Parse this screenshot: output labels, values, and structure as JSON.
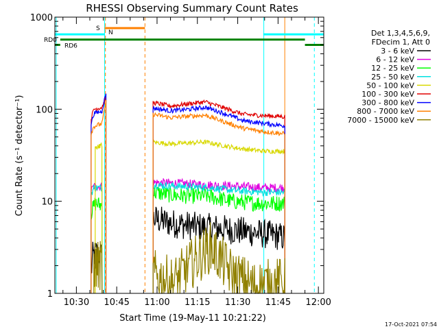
{
  "chart_data": {
    "type": "line",
    "title": "RHESSI Observing Summary Count Rates",
    "xlabel": "Start Time (19-May-11 10:21:22)",
    "ylabel": "Count Rate (s⁻¹ detector⁻¹)",
    "yscale": "log",
    "xlim_min": [
      22,
      122
    ],
    "ylim": [
      1,
      1000
    ],
    "x_ticks": [
      {
        "min": 30,
        "label": "10:30"
      },
      {
        "min": 45,
        "label": "10:45"
      },
      {
        "min": 60,
        "label": "11:00"
      },
      {
        "min": 75,
        "label": "11:15"
      },
      {
        "min": 90,
        "label": "11:30"
      },
      {
        "min": 105,
        "label": "11:45"
      },
      {
        "min": 120,
        "label": "12:00"
      }
    ],
    "y_ticks": [
      {
        "value": 1,
        "label": "1"
      },
      {
        "value": 10,
        "label": "10"
      },
      {
        "value": 100,
        "label": "100"
      },
      {
        "value": 1000,
        "label": "1000"
      }
    ],
    "legend": {
      "position": "right",
      "header": [
        "Det 1,3,4,5,6,9,",
        "FDecim 1, Att 0"
      ]
    },
    "series": [
      {
        "name": "3 - 6 keV",
        "color": "#000000",
        "segments": [
          [
            [
              35.5,
              1.6
            ],
            [
              36.0,
              2.5
            ],
            [
              37.5,
              2.8
            ],
            [
              39.5,
              2.5
            ]
          ],
          [
            [
              58.5,
              6.5
            ],
            [
              65,
              5.8
            ],
            [
              75,
              5.3
            ],
            [
              85,
              5.0
            ],
            [
              95,
              4.6
            ],
            [
              105,
              4.2
            ],
            [
              107.5,
              4.0
            ]
          ]
        ]
      },
      {
        "name": "6 - 12 keV",
        "color": "#e000e0",
        "segments": [
          [
            [
              35.5,
              13
            ],
            [
              36.5,
              14.5
            ],
            [
              39.5,
              14.5
            ]
          ],
          [
            [
              58.5,
              16
            ],
            [
              70,
              15.5
            ],
            [
              80,
              15
            ],
            [
              90,
              14.5
            ],
            [
              100,
              14
            ],
            [
              107.5,
              14
            ]
          ]
        ]
      },
      {
        "name": "12 - 25 keV",
        "color": "#00ff00",
        "segments": [
          [
            [
              35.5,
              7.5
            ],
            [
              37,
              9.5
            ],
            [
              39.5,
              9
            ]
          ],
          [
            [
              58.5,
              12.5
            ],
            [
              68,
              11.5
            ],
            [
              78,
              11.5
            ],
            [
              88,
              10
            ],
            [
              98,
              9.5
            ],
            [
              107.5,
              9.5
            ]
          ]
        ]
      },
      {
        "name": "25 - 50 keV",
        "color": "#00e0e0",
        "segments": [
          [
            [
              35.5,
              12
            ],
            [
              36.5,
              14
            ],
            [
              39.5,
              14
            ]
          ],
          [
            [
              58.5,
              15
            ],
            [
              70,
              14.5
            ],
            [
              80,
              14
            ],
            [
              90,
              13
            ],
            [
              100,
              12.5
            ],
            [
              107.5,
              12.5
            ]
          ]
        ]
      },
      {
        "name": "50 - 100 keV",
        "color": "#d8d800",
        "segments": [
          [
            [
              37,
              38
            ],
            [
              39.5,
              41
            ]
          ],
          [
            [
              58.5,
              44
            ],
            [
              65,
              42
            ],
            [
              72,
              43
            ],
            [
              78,
              44
            ],
            [
              85,
              40
            ],
            [
              92,
              37
            ],
            [
              100,
              35
            ],
            [
              107.5,
              35
            ]
          ]
        ]
      },
      {
        "name": "100 - 300 keV",
        "color": "#e00000",
        "segments": [
          [
            [
              35.5,
              80
            ],
            [
              36.5,
              100
            ],
            [
              39.5,
              105
            ],
            [
              41,
              130
            ]
          ],
          [
            [
              58.5,
              118
            ],
            [
              65,
              108
            ],
            [
              72,
              115
            ],
            [
              78,
              120
            ],
            [
              85,
              103
            ],
            [
              92,
              88
            ],
            [
              100,
              85
            ],
            [
              107.5,
              83
            ]
          ]
        ]
      },
      {
        "name": "300 - 800 keV",
        "color": "#0000ff",
        "segments": [
          [
            [
              35.5,
              70
            ],
            [
              36.5,
              90
            ],
            [
              39.5,
              95
            ],
            [
              41,
              150
            ]
          ],
          [
            [
              58.5,
              103
            ],
            [
              65,
              96
            ],
            [
              72,
              100
            ],
            [
              78,
              105
            ],
            [
              85,
              90
            ],
            [
              92,
              75
            ],
            [
              100,
              70
            ],
            [
              107.5,
              66
            ]
          ]
        ]
      },
      {
        "name": "800 - 7000 keV",
        "color": "#ff8000",
        "segments": [
          [
            [
              35.5,
              55
            ],
            [
              36.5,
              65
            ],
            [
              39.5,
              70
            ],
            [
              41,
              120
            ]
          ],
          [
            [
              58.5,
              88
            ],
            [
              65,
              81
            ],
            [
              72,
              84
            ],
            [
              78,
              86
            ],
            [
              85,
              73
            ],
            [
              92,
              62
            ],
            [
              100,
              57
            ],
            [
              107.5,
              54
            ]
          ]
        ]
      },
      {
        "name": "7000 - 15000 keV",
        "color": "#908000",
        "segments": [
          [
            [
              36.5,
              2.0
            ],
            [
              39.5,
              2.0
            ]
          ],
          [
            [
              58.5,
              1.6
            ],
            [
              66,
              1.3
            ],
            [
              72,
              2.0
            ],
            [
              80,
              3.2
            ],
            [
              88,
              1.6
            ],
            [
              96,
              1.2
            ],
            [
              105,
              1.3
            ],
            [
              107.5,
              1.3
            ]
          ]
        ]
      }
    ],
    "status_bars": [
      {
        "label": "",
        "color": "#00ffff",
        "segments": [
          [
            22,
            40.5
          ],
          [
            99.5,
            122
          ]
        ],
        "value": 650
      },
      {
        "label": "RD0",
        "color": "#008000",
        "segments": [
          [
            24,
            115
          ]
        ],
        "value": 570
      },
      {
        "label": "RD6",
        "color": "#008000",
        "segments": [
          [
            22,
            24
          ],
          [
            115,
            122
          ]
        ],
        "value": 500
      },
      {
        "label": "S",
        "color": "#ff8000",
        "segments": [
          [
            40.5,
            55.5
          ]
        ],
        "value": 760
      },
      {
        "label": "N",
        "color": "#00ffff",
        "segments": [],
        "value": 700
      }
    ],
    "vlines": [
      {
        "min": 22.5,
        "color": "#00ffff",
        "dash": false
      },
      {
        "min": 40.5,
        "color": "#00ffff",
        "dash": false
      },
      {
        "min": 40.8,
        "color": "#ff8000",
        "dash": true
      },
      {
        "min": 55.5,
        "color": "#ff8000",
        "dash": true
      },
      {
        "min": 99.7,
        "color": "#00ffff",
        "dash": false
      },
      {
        "min": 107.5,
        "color": "#ff8000",
        "dash": false
      },
      {
        "min": 118.5,
        "color": "#00ffff",
        "dash": true
      }
    ]
  },
  "timestamp": "17-Oct-2021 07:54"
}
